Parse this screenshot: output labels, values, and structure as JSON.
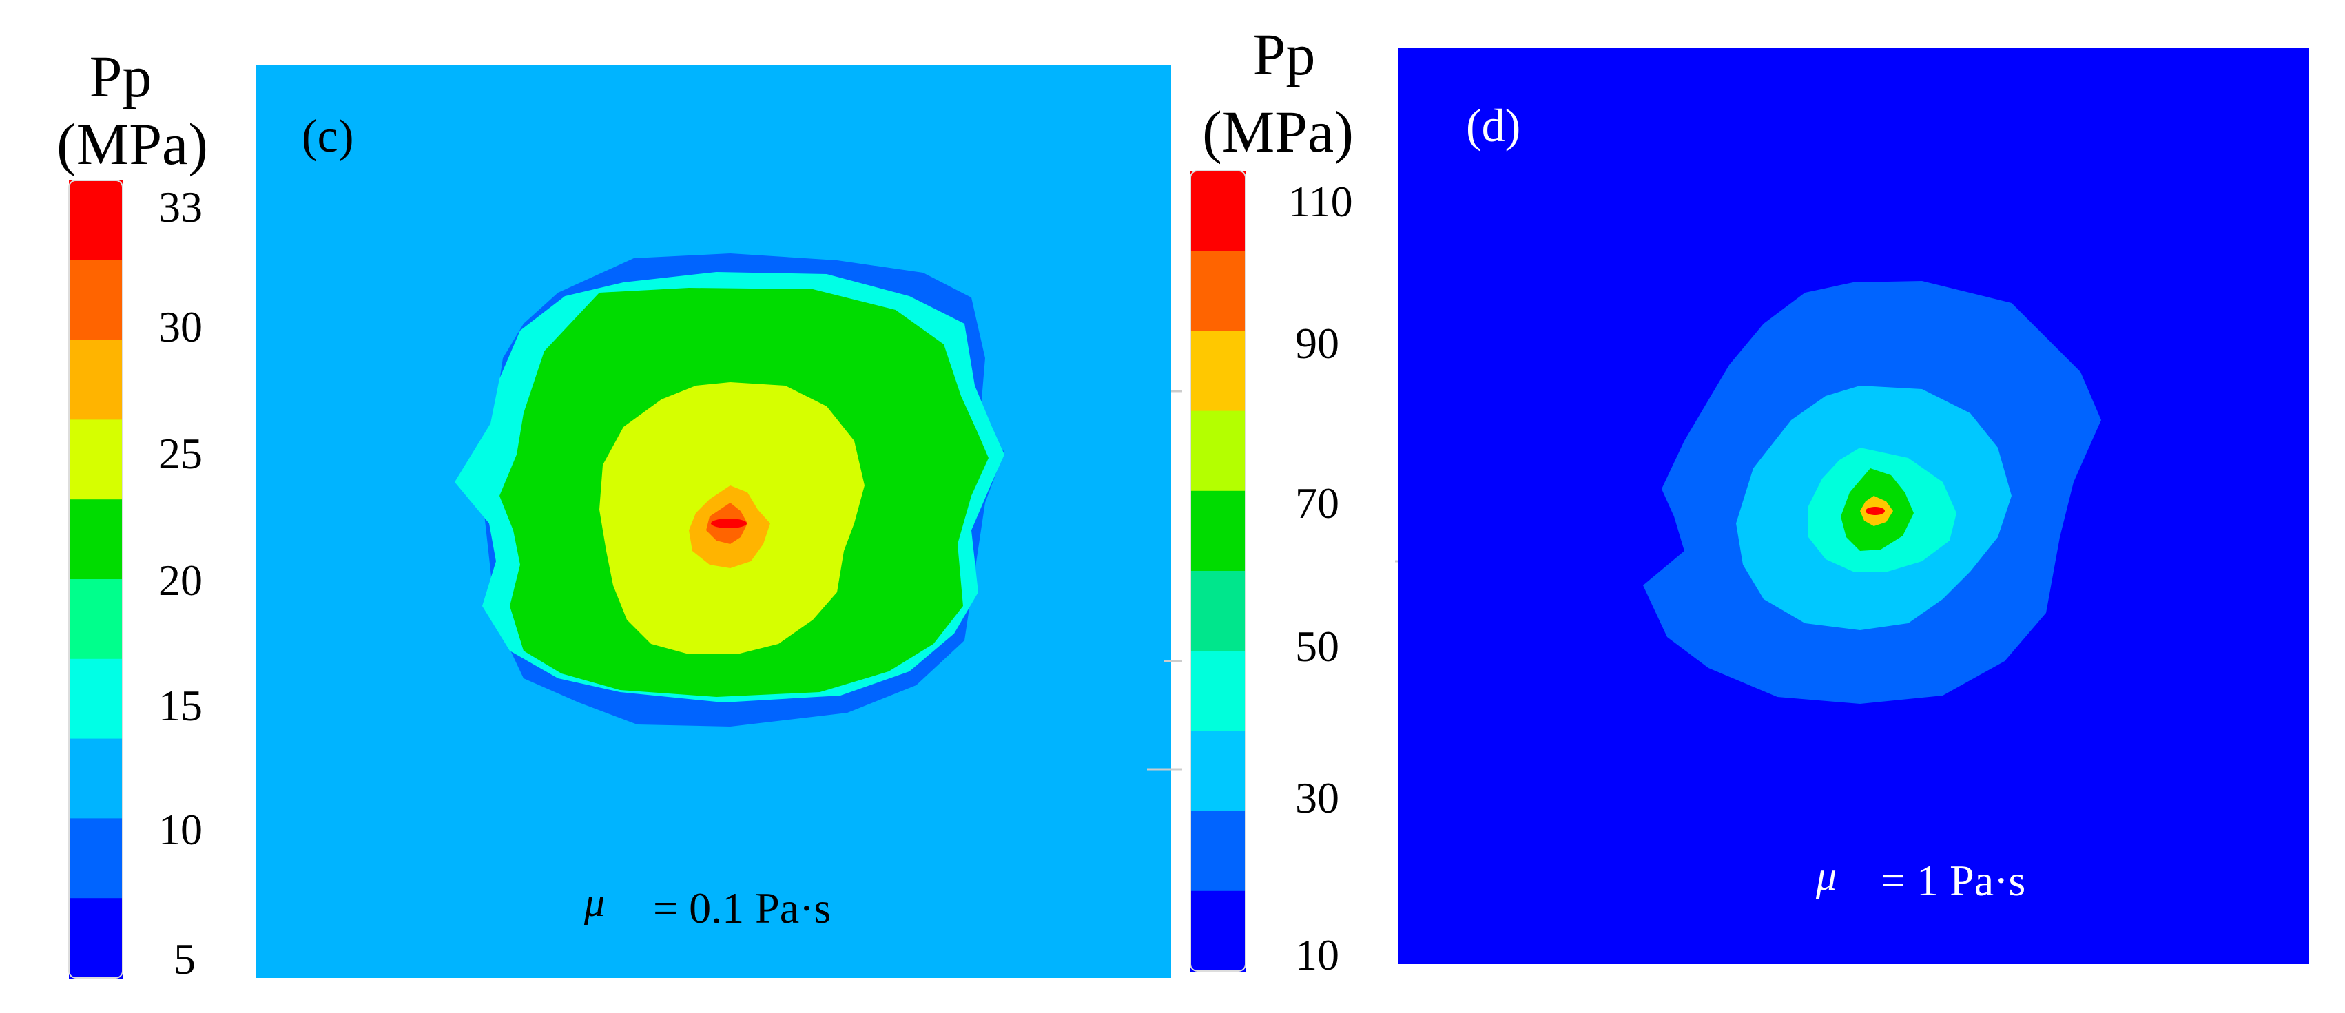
{
  "chart_data": [
    {
      "type": "heatmap",
      "panel_label": "(c)",
      "colorbar": {
        "title_line1": "Pp",
        "title_line2": "(MPa)",
        "tick_labels": [
          "33",
          "30",
          "25",
          "20",
          "15",
          "10",
          "5"
        ],
        "tick_values": [
          33,
          30,
          25,
          20,
          15,
          10,
          5
        ],
        "range": [
          5,
          33
        ],
        "colors_top_to_bottom": [
          "#ff0000",
          "#ff6400",
          "#ffb400",
          "#d6ff00",
          "#00dc00",
          "#00ff8c",
          "#00ffe6",
          "#00b4ff",
          "#0064ff",
          "#0000ff"
        ]
      },
      "annotation_symbol": "μ",
      "annotation_text": "= 0.1 Pa·s",
      "viscosity_pa_s": 0.1,
      "background_color": "#00b4ff",
      "contours_outer_to_inner": [
        "#0064ff",
        "#00ffe6",
        "#00dc00",
        "#d6ff00",
        "#ffb400",
        "#ff6400",
        "#ff0000"
      ]
    },
    {
      "type": "heatmap",
      "panel_label": "(d)",
      "colorbar": {
        "title_line1": "Pp",
        "title_line2": "(MPa)",
        "tick_labels": [
          "110",
          "90",
          "70",
          "50",
          "30",
          "10"
        ],
        "tick_values": [
          110,
          90,
          70,
          50,
          30,
          10
        ],
        "range": [
          10,
          110
        ],
        "colors_top_to_bottom": [
          "#ff0000",
          "#ff6400",
          "#ffc800",
          "#b4ff00",
          "#00dc00",
          "#00e68c",
          "#00ffdc",
          "#00c8ff",
          "#0064ff",
          "#0000ff"
        ]
      },
      "annotation_symbol": "μ",
      "annotation_text": "= 1 Pa·s",
      "viscosity_pa_s": 1,
      "background_color": "#0000ff",
      "contours_outer_to_inner": [
        "#0064ff",
        "#00c8ff",
        "#00ffdc",
        "#00dc00",
        "#ffc800",
        "#ff0000"
      ]
    }
  ]
}
